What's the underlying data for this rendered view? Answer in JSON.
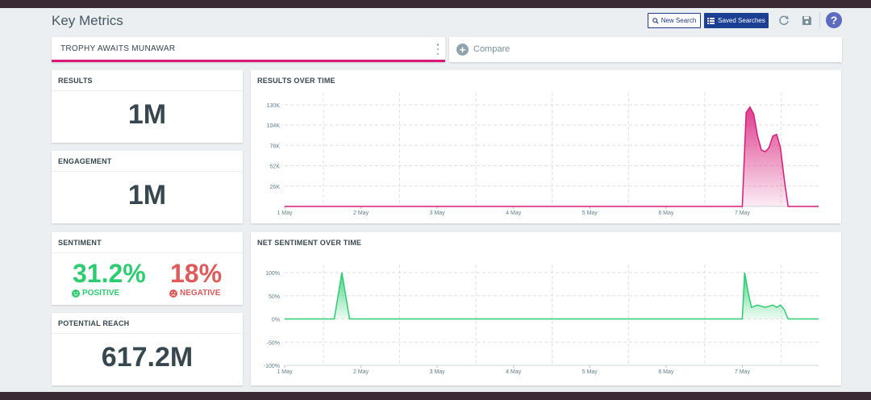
{
  "header": {
    "title": "Key Metrics",
    "new_search": "New Search",
    "saved_searches": "Saved Searches",
    "help": "?"
  },
  "search": {
    "name": "TROPHY AWAITS MUNAWAR",
    "compare": "Compare"
  },
  "metrics": {
    "results": {
      "title": "RESULTS",
      "value": "1M"
    },
    "engagement": {
      "title": "ENGAGEMENT",
      "value": "1M"
    },
    "sentiment": {
      "title": "SENTIMENT",
      "positive_value": "31.2%",
      "positive_label": "POSITIVE",
      "negative_value": "18%",
      "negative_label": "NEGATIVE"
    },
    "reach": {
      "title": "POTENTIAL REACH",
      "value": "617.2M"
    }
  },
  "colors": {
    "accent": "#d81b7a",
    "positive": "#2ecc71",
    "negative": "#e05a5a",
    "primary_button": "#1a3f93"
  },
  "charts": {
    "results_title": "RESULTS OVER TIME",
    "sentiment_title": "NET SENTIMENT OVER TIME"
  },
  "chart_data": [
    {
      "type": "area",
      "title": "RESULTS OVER TIME",
      "x_tick_labels": [
        "1 May",
        "2 May",
        "3 May",
        "4 May",
        "5 May",
        "6 May",
        "7 May"
      ],
      "y_tick_labels": [
        "130K",
        "104K",
        "78K",
        "52K",
        "26K"
      ],
      "ylim": [
        0,
        135000
      ],
      "xlim": [
        1,
        8.0
      ],
      "grid": true,
      "series": [
        {
          "color": "#d81b7a",
          "x": [
            1.0,
            7.0,
            7.05,
            7.1,
            7.15,
            7.2,
            7.25,
            7.3,
            7.35,
            7.4,
            7.45,
            7.5,
            7.55,
            7.6,
            7.65,
            7.7,
            8.0
          ],
          "y": [
            0,
            0,
            120000,
            127000,
            118000,
            90000,
            72000,
            70000,
            75000,
            90000,
            92000,
            75000,
            35000,
            0,
            0,
            0,
            0
          ]
        }
      ]
    },
    {
      "type": "area",
      "title": "NET SENTIMENT OVER TIME",
      "x_tick_labels": [
        "1 May",
        "2 May",
        "3 May",
        "4 May",
        "5 May",
        "6 May",
        "7 May"
      ],
      "y_tick_labels": [
        "100%",
        "50%",
        "0%",
        "-50%",
        "-100%"
      ],
      "ylim": [
        -100,
        100
      ],
      "xlim": [
        1,
        8.0
      ],
      "grid": true,
      "series": [
        {
          "color": "#2ecc71",
          "x": [
            1.0,
            1.65,
            1.7,
            1.75,
            1.8,
            1.85,
            7.0,
            7.03,
            7.08,
            7.12,
            7.2,
            7.3,
            7.4,
            7.45,
            7.5,
            7.55,
            7.6,
            8.0
          ],
          "y": [
            0,
            0,
            50,
            100,
            50,
            0,
            0,
            100,
            55,
            25,
            30,
            25,
            30,
            25,
            30,
            20,
            0,
            0
          ]
        }
      ]
    }
  ]
}
